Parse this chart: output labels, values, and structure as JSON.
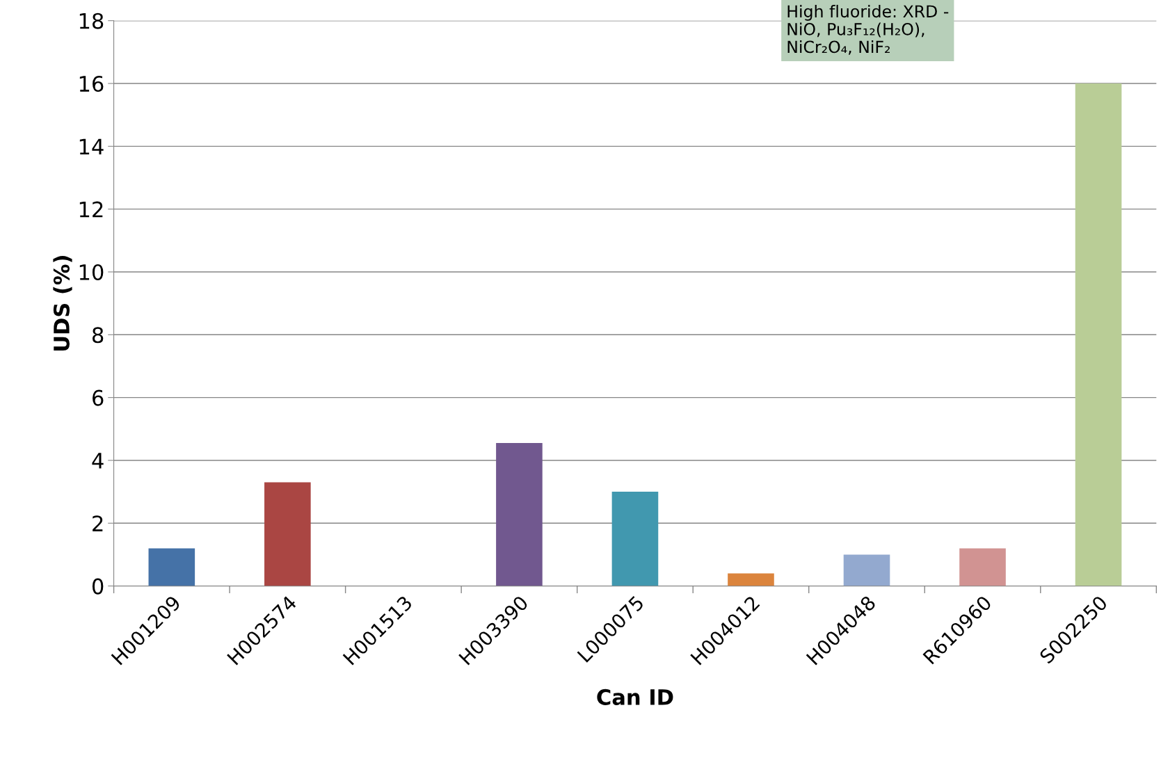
{
  "chart_data": {
    "type": "bar",
    "xlabel": "Can ID",
    "ylabel": "UDS (%)",
    "categories": [
      "H001209",
      "H002574",
      "H001513",
      "H003390",
      "L000075",
      "H004012",
      "H004048",
      "R610960",
      "S002250"
    ],
    "values": [
      1.2,
      3.3,
      0,
      4.55,
      3.0,
      0.4,
      1.0,
      1.2,
      16.0
    ],
    "colors": [
      "#4572a7",
      "#aa4643",
      "#89a54e",
      "#71588f",
      "#4198af",
      "#db843d",
      "#93a9cf",
      "#d19392",
      "#b9cd96"
    ],
    "ylim": [
      0,
      18
    ],
    "yticks": [
      0,
      2,
      4,
      6,
      8,
      10,
      12,
      14,
      16,
      18
    ],
    "grid": "y",
    "annotations": [
      "High fluoride: XRD -\nNiO, Pu₃F₁₂(H₂O),\nNiCr₂O₄, NiF₂"
    ]
  }
}
